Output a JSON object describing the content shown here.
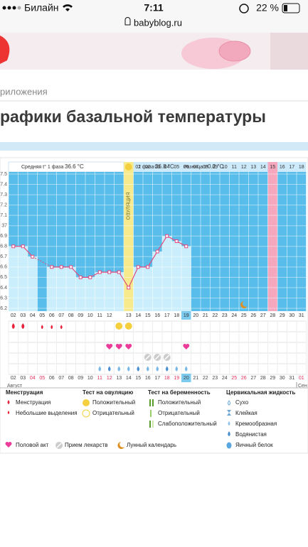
{
  "status": {
    "carrier": "Билайн",
    "time": "7:11",
    "battery": "22 %"
  },
  "url": "babyblog.ru",
  "breadcrumb": "риложения",
  "heading": "рафики базальной температуры",
  "chart_data": {
    "type": "line",
    "summary": {
      "phase1_label": "Средняя t° 1 фаза",
      "phase1_value": "36.6 °C",
      "phase2_label": "2 фаза",
      "phase2_value": "36.8 °C",
      "diff_label": "Разница t°",
      "diff_value": "0.2 °C"
    },
    "ovulation_label": "ОВУЛЯЦИЯ",
    "cycle_days": [
      "01",
      "02",
      "03",
      "04",
      "05",
      "06",
      "07",
      "08",
      "09",
      "10",
      "11",
      "12",
      "13",
      "14",
      "15",
      "16",
      "17",
      "18"
    ],
    "cycle_days_highlight": 14,
    "day_row": [
      "02",
      "03",
      "04",
      "05",
      "06",
      "07",
      "08",
      "09",
      "10",
      "11",
      "12",
      "13",
      "14",
      "15",
      "16",
      "17",
      "18",
      "19",
      "20",
      "21",
      "22",
      "23",
      "24",
      "25",
      "26",
      "27",
      "28",
      "29",
      "30",
      "31"
    ],
    "day_row_highlight": 17,
    "categories": [
      "02",
      "03",
      "04",
      "05",
      "06",
      "07",
      "08",
      "09",
      "10",
      "11",
      "12",
      "13",
      "14",
      "15",
      "16",
      "17",
      "18",
      "19",
      "20",
      "21",
      "22",
      "23",
      "24",
      "25",
      "26",
      "27",
      "28",
      "29",
      "30",
      "31",
      "01"
    ],
    "categories_highlight": 18,
    "categories_red": [
      2,
      3,
      9,
      10,
      16,
      17,
      23,
      24,
      30
    ],
    "series": [
      {
        "color": "#e04a7f",
        "values": [
          36.8,
          36.8,
          36.7,
          null,
          36.6,
          36.6,
          36.6,
          36.5,
          36.5,
          36.55,
          36.55,
          36.55,
          36.4,
          36.6,
          36.6,
          36.75,
          36.9,
          36.85,
          36.8,
          null,
          null,
          null,
          null,
          null,
          null,
          null,
          null,
          null,
          null,
          null,
          null
        ]
      }
    ],
    "ylim": [
      36.2,
      37.5
    ],
    "yticks": [
      36.2,
      36.3,
      36.4,
      36.5,
      36.6,
      36.7,
      36.8,
      36.9,
      37.0,
      37.1,
      37.2,
      37.3,
      37.4,
      37.5
    ],
    "grid": true,
    "months": [
      "Август",
      "Сен"
    ]
  },
  "legend": {
    "menstruation": {
      "title": "Менструация",
      "items": [
        "Менструация",
        "Небольшие выделения"
      ]
    },
    "ovulation_test": {
      "title": "Тест на овуляцию",
      "items": [
        "Положительный",
        "Отрицательный"
      ]
    },
    "pregnancy_test": {
      "title": "Тест на беременность",
      "items": [
        "Положительный",
        "Отрицательный",
        "Слабоположительный"
      ]
    },
    "cervical": {
      "title": "Цервикальная жидкость",
      "items": [
        "Сухо",
        "Клейкая",
        "Кремообразная",
        "Водянистая",
        "Яичный белок"
      ]
    },
    "other": [
      "Половой акт",
      "Прием лекарств",
      "Лунный календарь"
    ]
  }
}
